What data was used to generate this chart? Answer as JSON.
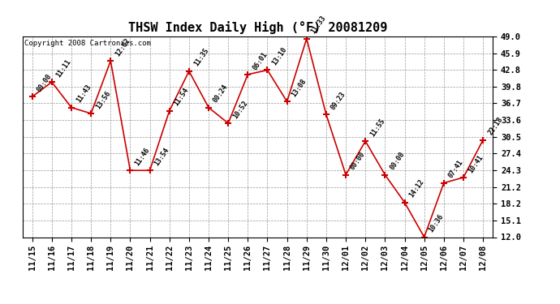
{
  "title": "THSW Index Daily High (°F) 20081209",
  "copyright": "Copyright 2008 Cartronics.com",
  "x_labels": [
    "11/15",
    "11/16",
    "11/17",
    "11/18",
    "11/19",
    "11/20",
    "11/21",
    "11/22",
    "11/23",
    "11/24",
    "11/25",
    "11/26",
    "11/27",
    "11/28",
    "11/29",
    "11/30",
    "12/01",
    "12/02",
    "12/03",
    "12/04",
    "12/05",
    "12/06",
    "12/07",
    "12/08"
  ],
  "y_values": [
    37.9,
    40.6,
    35.9,
    34.8,
    44.5,
    24.3,
    24.3,
    35.3,
    42.6,
    35.9,
    33.0,
    42.0,
    42.8,
    37.0,
    48.6,
    34.6,
    23.5,
    29.7,
    23.5,
    18.4,
    12.0,
    22.0,
    23.0,
    29.9
  ],
  "time_labels": [
    "00:00",
    "11:11",
    "11:43",
    "13:56",
    "12:02",
    "11:46",
    "13:54",
    "11:54",
    "11:35",
    "00:24",
    "10:52",
    "06:01",
    "13:10",
    "13:08",
    "11:33",
    "09:23",
    "00:00",
    "11:55",
    "00:00",
    "14:12",
    "10:36",
    "07:41",
    "10:41",
    "22:18"
  ],
  "y_min": 12.0,
  "y_max": 49.0,
  "y_ticks": [
    12.0,
    15.1,
    18.2,
    21.2,
    24.3,
    27.4,
    30.5,
    33.6,
    36.7,
    39.8,
    42.8,
    45.9,
    49.0
  ],
  "line_color": "#cc0000",
  "marker_color": "#cc0000",
  "bg_color": "#ffffff",
  "plot_bg_color": "#ffffff",
  "grid_color": "#999999",
  "title_fontsize": 11,
  "copyright_fontsize": 6.5,
  "tick_fontsize": 7.5,
  "annotation_fontsize": 6.0
}
